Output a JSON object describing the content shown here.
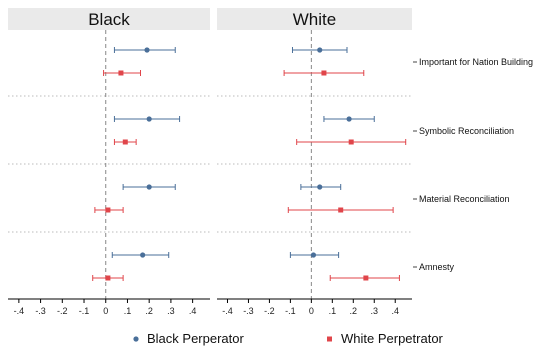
{
  "chart_data": {
    "type": "scatter",
    "panels": [
      {
        "title": "Black",
        "estimates": [
          {
            "row": "Important for Nation Building",
            "series": "Black Perperator",
            "value": 0.19,
            "ci": [
              0.04,
              0.32
            ]
          },
          {
            "row": "Important for Nation Building",
            "series": "White Perpetrator",
            "value": 0.07,
            "ci": [
              -0.01,
              0.16
            ]
          },
          {
            "row": "Symbolic Reconciliation",
            "series": "Black Perperator",
            "value": 0.2,
            "ci": [
              0.04,
              0.34
            ]
          },
          {
            "row": "Symbolic Reconciliation",
            "series": "White Perpetrator",
            "value": 0.09,
            "ci": [
              0.04,
              0.14
            ]
          },
          {
            "row": "Material Reconciliation",
            "series": "Black Perperator",
            "value": 0.2,
            "ci": [
              0.08,
              0.32
            ]
          },
          {
            "row": "Material Reconciliation",
            "series": "White Perpetrator",
            "value": 0.01,
            "ci": [
              -0.05,
              0.08
            ]
          },
          {
            "row": "Amnesty",
            "series": "Black Perperator",
            "value": 0.17,
            "ci": [
              0.03,
              0.29
            ]
          },
          {
            "row": "Amnesty",
            "series": "White Perpetrator",
            "value": 0.01,
            "ci": [
              -0.06,
              0.08
            ]
          }
        ]
      },
      {
        "title": "White",
        "estimates": [
          {
            "row": "Important for Nation Building",
            "series": "Black Perperator",
            "value": 0.04,
            "ci": [
              -0.09,
              0.17
            ]
          },
          {
            "row": "Important for Nation Building",
            "series": "White Perpetrator",
            "value": 0.06,
            "ci": [
              -0.13,
              0.25
            ]
          },
          {
            "row": "Symbolic Reconciliation",
            "series": "Black Perperator",
            "value": 0.18,
            "ci": [
              0.06,
              0.3
            ]
          },
          {
            "row": "Symbolic Reconciliation",
            "series": "White Perpetrator",
            "value": 0.19,
            "ci": [
              -0.07,
              0.45
            ]
          },
          {
            "row": "Material Reconciliation",
            "series": "Black Perperator",
            "value": 0.04,
            "ci": [
              -0.05,
              0.14
            ]
          },
          {
            "row": "Material Reconciliation",
            "series": "White Perpetrator",
            "value": 0.14,
            "ci": [
              -0.11,
              0.39
            ]
          },
          {
            "row": "Amnesty",
            "series": "Black Perperator",
            "value": 0.01,
            "ci": [
              -0.1,
              0.13
            ]
          },
          {
            "row": "Amnesty",
            "series": "White Perpetrator",
            "value": 0.26,
            "ci": [
              0.09,
              0.42
            ]
          }
        ]
      }
    ],
    "rows": [
      "Important for Nation Building",
      "Symbolic Reconciliation",
      "Material Reconciliation",
      "Amnesty"
    ],
    "xlim": [
      -0.45,
      0.48
    ],
    "xticks": [
      -0.4,
      -0.3,
      -0.2,
      -0.1,
      0,
      0.1,
      0.2,
      0.3,
      0.4
    ],
    "xtick_labels": [
      "-.4",
      "-.3",
      "-.2",
      "-.1",
      "0",
      ".1",
      ".2",
      ".3",
      ".4"
    ],
    "reference_line": 0,
    "legend": {
      "placement": "bottom",
      "entries": [
        {
          "name": "Black Perperator",
          "color": "#4a6f99",
          "marker": "circle"
        },
        {
          "name": "White Perpetrator",
          "color": "#e0454a",
          "marker": "square"
        }
      ]
    },
    "colors": {
      "panel_header": "#eaeaea",
      "divider": "#bbbbbb",
      "reference": "#888888"
    }
  }
}
